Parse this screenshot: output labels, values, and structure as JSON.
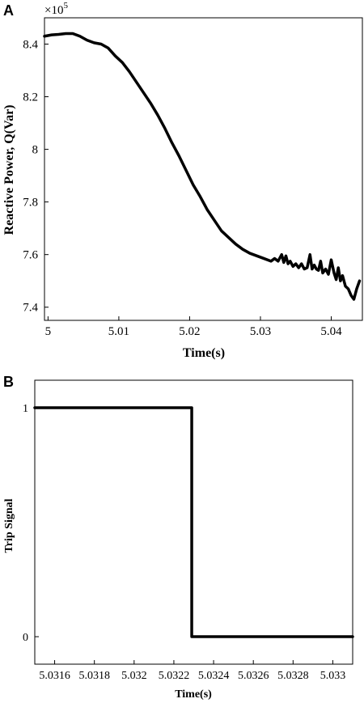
{
  "chart_data": [
    {
      "panel_label": "A",
      "type": "line",
      "xlabel": "Time(s)",
      "ylabel": "Reactive Power, Q(Var)",
      "y_multiplier": "×10",
      "y_multiplier_exp": "5",
      "xlim": [
        4.9995,
        5.0444
      ],
      "ylim": [
        7.35,
        8.5
      ],
      "xticks": [
        5.0,
        5.01,
        5.02,
        5.03,
        5.04
      ],
      "xtick_labels": [
        "5",
        "5.01",
        "5.02",
        "5.03",
        "5.04"
      ],
      "yticks": [
        7.4,
        7.6,
        7.8,
        8.0,
        8.2,
        8.4
      ],
      "ytick_labels": [
        "7.4",
        "7.6",
        "7.8",
        "8",
        "8.2",
        "8.4"
      ],
      "series": [
        {
          "x": [
            4.9995,
            5.0005,
            5.0015,
            5.0025,
            5.0035,
            5.0045,
            5.0055,
            5.0065,
            5.0075,
            5.0085,
            5.0095,
            5.0105,
            5.0115,
            5.0125,
            5.0135,
            5.0145,
            5.0155,
            5.0165,
            5.0175,
            5.0185,
            5.0195,
            5.0205,
            5.0215,
            5.0225,
            5.0235,
            5.0245,
            5.0255,
            5.0265,
            5.0275,
            5.0285,
            5.0295,
            5.0305,
            5.0315,
            5.032,
            5.0325,
            5.033,
            5.0333,
            5.0336,
            5.0339,
            5.0342,
            5.0346,
            5.035,
            5.0354,
            5.0358,
            5.0362,
            5.0366,
            5.037,
            5.0373,
            5.0376,
            5.0379,
            5.0382,
            5.0385,
            5.0388,
            5.0392,
            5.0396,
            5.04,
            5.0404,
            5.0407,
            5.041,
            5.0413,
            5.0416,
            5.042,
            5.0424,
            5.0428,
            5.0432,
            5.0436,
            5.044
          ],
          "values": [
            8.43,
            8.435,
            8.437,
            8.44,
            8.44,
            8.43,
            8.415,
            8.405,
            8.4,
            8.385,
            8.355,
            8.33,
            8.295,
            8.255,
            8.215,
            8.175,
            8.13,
            8.08,
            8.025,
            7.975,
            7.92,
            7.865,
            7.82,
            7.77,
            7.73,
            7.69,
            7.665,
            7.64,
            7.62,
            7.605,
            7.595,
            7.585,
            7.575,
            7.585,
            7.575,
            7.6,
            7.57,
            7.595,
            7.565,
            7.575,
            7.555,
            7.565,
            7.55,
            7.565,
            7.545,
            7.55,
            7.6,
            7.545,
            7.56,
            7.545,
            7.54,
            7.575,
            7.53,
            7.545,
            7.525,
            7.58,
            7.53,
            7.505,
            7.55,
            7.5,
            7.52,
            7.48,
            7.47,
            7.445,
            7.43,
            7.47,
            7.5
          ]
        }
      ]
    },
    {
      "panel_label": "B",
      "type": "line",
      "xlabel": "Time(s)",
      "ylabel": "Trip Signal",
      "xlim": [
        5.0315,
        5.0331
      ],
      "ylim": [
        -0.12,
        1.12
      ],
      "xticks": [
        5.0316,
        5.0318,
        5.032,
        5.0322,
        5.0324,
        5.0326,
        5.0328,
        5.033
      ],
      "xtick_labels": [
        "5.0316",
        "5.0318",
        "5.032",
        "5.0322",
        "5.0324",
        "5.0326",
        "5.0328",
        "5.033"
      ],
      "yticks": [
        0,
        1
      ],
      "ytick_labels": [
        "0",
        "1"
      ],
      "series": [
        {
          "x": [
            5.0315,
            5.03229,
            5.03229,
            5.0331
          ],
          "values": [
            1,
            1,
            0,
            0
          ]
        }
      ]
    }
  ]
}
